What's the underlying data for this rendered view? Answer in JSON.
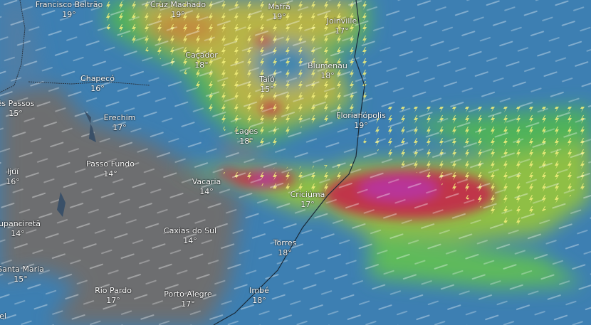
{
  "map": {
    "layer": "thunderstorms / precipitation with wind particles",
    "colors": {
      "ocean_low": "#3d7fb2",
      "land_dry": "#6d6e70",
      "green": "#4fb35a",
      "yellow": "#c8b43c",
      "red": "#c0354a",
      "magenta": "#b8369a",
      "lightning": "#f2ef7a"
    },
    "cities": [
      {
        "name": "Francisco Beltrão",
        "temp": "19°"
      },
      {
        "name": "Cruz Machado",
        "temp": "19°"
      },
      {
        "name": "Mafra",
        "temp": "19°"
      },
      {
        "name": "Joinville",
        "temp": "17°"
      },
      {
        "name": "Caçador",
        "temp": "18°"
      },
      {
        "name": "Blumenau",
        "temp": "18°"
      },
      {
        "name": "Chapecó",
        "temp": "16°"
      },
      {
        "name": "Taió",
        "temp": "15°"
      },
      {
        "name": "ês Passos",
        "temp": "15°"
      },
      {
        "name": "Florianópolis",
        "temp": "19°"
      },
      {
        "name": "Erechim",
        "temp": "17°"
      },
      {
        "name": "Lages",
        "temp": "18°"
      },
      {
        "name": "Passo Fundo",
        "temp": "14°"
      },
      {
        "name": "Ijuí",
        "temp": "16°"
      },
      {
        "name": "Vacaria",
        "temp": "14°"
      },
      {
        "name": "Criciúma",
        "temp": "17°"
      },
      {
        "name": "Tupanciretã",
        "temp": "14°"
      },
      {
        "name": "Caxias do Sul",
        "temp": "14°"
      },
      {
        "name": "Torres",
        "temp": "18°"
      },
      {
        "name": "Santa Maria",
        "temp": "15°"
      },
      {
        "name": "Rio Pardo",
        "temp": "17°"
      },
      {
        "name": "Porto Alegre",
        "temp": "17°"
      },
      {
        "name": "Imbé",
        "temp": "18°"
      },
      {
        "name": "el",
        "temp": ""
      }
    ]
  }
}
